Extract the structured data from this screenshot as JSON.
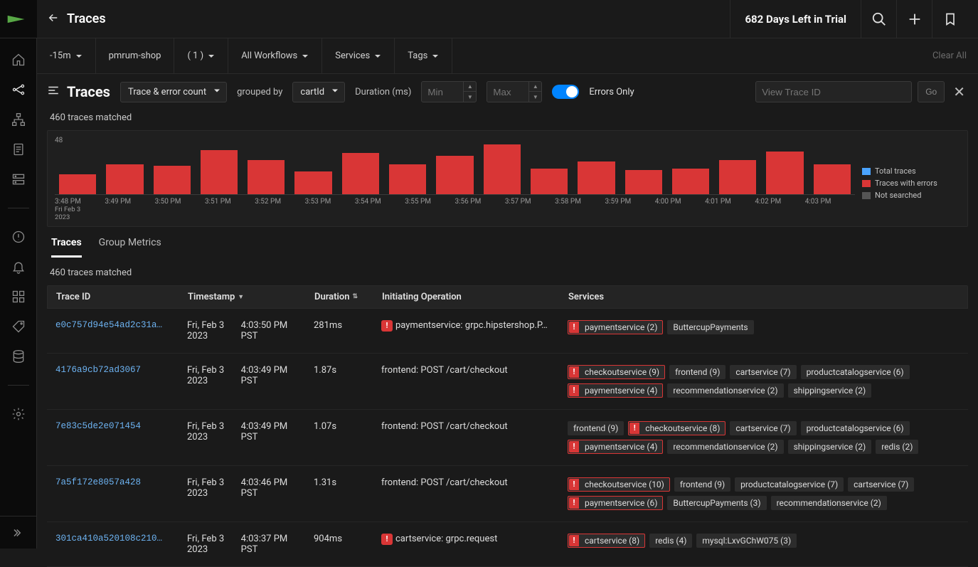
{
  "header": {
    "title": "Traces",
    "trial_text": "682 Days Left in Trial"
  },
  "filters": {
    "time": "-15m",
    "env": "pmrum-shop",
    "count": "( 1 )",
    "workflows": "All Workflows",
    "services": "Services",
    "tags": "Tags",
    "clear": "Clear All"
  },
  "controls": {
    "heading": "Traces",
    "metric_dd": "Trace & error count",
    "grouped_label": "grouped by",
    "grouped_dd": "cartId",
    "duration_label": "Duration (ms)",
    "min_ph": "Min",
    "max_ph": "Max",
    "errors_label": "Errors Only",
    "trace_ph": "View Trace ID",
    "go": "Go"
  },
  "matched": "460 traces matched",
  "chart": {
    "ymax": "48",
    "bars": [
      28,
      42,
      40,
      62,
      48,
      32,
      58,
      42,
      54,
      70,
      36,
      46,
      34,
      36,
      48,
      60,
      42
    ],
    "bar_color": "#d93636",
    "ticks": [
      "3:48 PM",
      "3:49 PM",
      "3:50 PM",
      "3:51 PM",
      "3:52 PM",
      "3:53 PM",
      "3:54 PM",
      "3:55 PM",
      "3:56 PM",
      "3:57 PM",
      "3:58 PM",
      "3:59 PM",
      "4:00 PM",
      "4:01 PM",
      "4:02 PM",
      "4:03 PM"
    ],
    "sub1": "Fri Feb 3",
    "sub2": "2023",
    "legend": [
      {
        "c": "#4aa3ff",
        "t": "Total traces"
      },
      {
        "c": "#d93636",
        "t": "Traces with errors"
      },
      {
        "c": "#555555",
        "t": "Not searched"
      }
    ]
  },
  "tabs": {
    "traces": "Traces",
    "group": "Group Metrics"
  },
  "columns": {
    "id": "Trace ID",
    "ts": "Timestamp",
    "dur": "Duration",
    "op": "Initiating Operation",
    "svc": "Services"
  },
  "rows": [
    {
      "id": "e0c757d94e54ad2c31a…",
      "ts1": "Fri, Feb 3 2023",
      "ts2": "4:03:50 PM PST",
      "dur": "281ms",
      "op": "paymentservice: grpc.hipstershop.P…",
      "op_err": true,
      "svcs": [
        {
          "t": "paymentservice (2)",
          "e": true
        },
        {
          "t": "ButtercupPayments",
          "e": false
        }
      ]
    },
    {
      "id": "4176a9cb72ad3067",
      "ts1": "Fri, Feb 3 2023",
      "ts2": "4:03:49 PM PST",
      "dur": "1.87s",
      "op": "frontend: POST /cart/checkout",
      "op_err": false,
      "svcs": [
        {
          "t": "checkoutservice (9)",
          "e": true
        },
        {
          "t": "frontend (9)",
          "e": false
        },
        {
          "t": "cartservice (7)",
          "e": false
        },
        {
          "t": "productcatalogservice (6)",
          "e": false
        },
        {
          "t": "paymentservice (4)",
          "e": true
        },
        {
          "t": "recommendationservice (2)",
          "e": false
        },
        {
          "t": "shippingservice (2)",
          "e": false
        }
      ]
    },
    {
      "id": "7e83c5de2e071454",
      "ts1": "Fri, Feb 3 2023",
      "ts2": "4:03:49 PM PST",
      "dur": "1.07s",
      "op": "frontend: POST /cart/checkout",
      "op_err": false,
      "svcs": [
        {
          "t": "frontend (9)",
          "e": false
        },
        {
          "t": "checkoutservice (8)",
          "e": true
        },
        {
          "t": "cartservice (7)",
          "e": false
        },
        {
          "t": "productcatalogservice (6)",
          "e": false
        },
        {
          "t": "paymentservice (4)",
          "e": true
        },
        {
          "t": "recommendationservice (2)",
          "e": false
        },
        {
          "t": "shippingservice (2)",
          "e": false
        },
        {
          "t": "redis (2)",
          "e": false
        }
      ]
    },
    {
      "id": "7a5f172e8057a428",
      "ts1": "Fri, Feb 3 2023",
      "ts2": "4:03:46 PM PST",
      "dur": "1.31s",
      "op": "frontend: POST /cart/checkout",
      "op_err": false,
      "svcs": [
        {
          "t": "checkoutservice (10)",
          "e": true
        },
        {
          "t": "frontend (9)",
          "e": false
        },
        {
          "t": "productcatalogservice (7)",
          "e": false
        },
        {
          "t": "cartservice (7)",
          "e": false
        },
        {
          "t": "paymentservice (6)",
          "e": true
        },
        {
          "t": "ButtercupPayments (3)",
          "e": false
        },
        {
          "t": "recommendationservice (2)",
          "e": false
        }
      ]
    },
    {
      "id": "301ca410a520108c210…",
      "ts1": "Fri, Feb 3 2023",
      "ts2": "4:03:37 PM PST",
      "dur": "904ms",
      "op": "cartservice: grpc.request",
      "op_err": true,
      "svcs": [
        {
          "t": "cartservice (8)",
          "e": true
        },
        {
          "t": "redis (4)",
          "e": false
        },
        {
          "t": "mysql:LxvGChW075 (3)",
          "e": false
        }
      ]
    }
  ]
}
